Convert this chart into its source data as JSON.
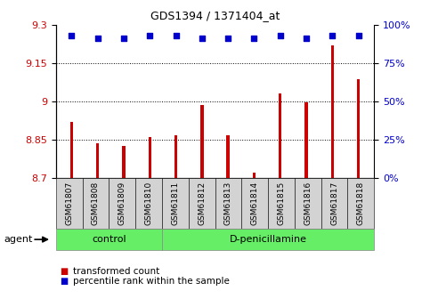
{
  "title": "GDS1394 / 1371404_at",
  "samples": [
    "GSM61807",
    "GSM61808",
    "GSM61809",
    "GSM61810",
    "GSM61811",
    "GSM61812",
    "GSM61813",
    "GSM61814",
    "GSM61815",
    "GSM61816",
    "GSM61817",
    "GSM61818"
  ],
  "transformed_counts": [
    8.92,
    8.835,
    8.825,
    8.862,
    8.868,
    8.985,
    8.868,
    8.722,
    9.032,
    8.995,
    9.22,
    9.085
  ],
  "percentile_ranks": [
    93,
    91,
    91,
    93,
    93,
    91,
    91,
    91,
    93,
    91,
    93,
    93
  ],
  "groups": [
    "control",
    "control",
    "control",
    "control",
    "D-penicillamine",
    "D-penicillamine",
    "D-penicillamine",
    "D-penicillamine",
    "D-penicillamine",
    "D-penicillamine",
    "D-penicillamine",
    "D-penicillamine"
  ],
  "bar_color": "#CC0000",
  "dot_color": "#0000CC",
  "ylim_left": [
    8.7,
    9.3
  ],
  "ylim_right": [
    0,
    100
  ],
  "yticks_left": [
    8.7,
    8.85,
    9.0,
    9.15,
    9.3
  ],
  "yticks_right": [
    0,
    25,
    50,
    75,
    100
  ],
  "grid_values": [
    8.85,
    9.0,
    9.15
  ],
  "bar_width": 0.12,
  "agent_label": "agent",
  "control_label": "control",
  "dpen_label": "D-penicillamine",
  "legend_bar_label": "transformed count",
  "legend_dot_label": "percentile rank within the sample",
  "tick_box_color": "#d3d3d3",
  "group_box_color": "#66EE66",
  "n_control": 4
}
